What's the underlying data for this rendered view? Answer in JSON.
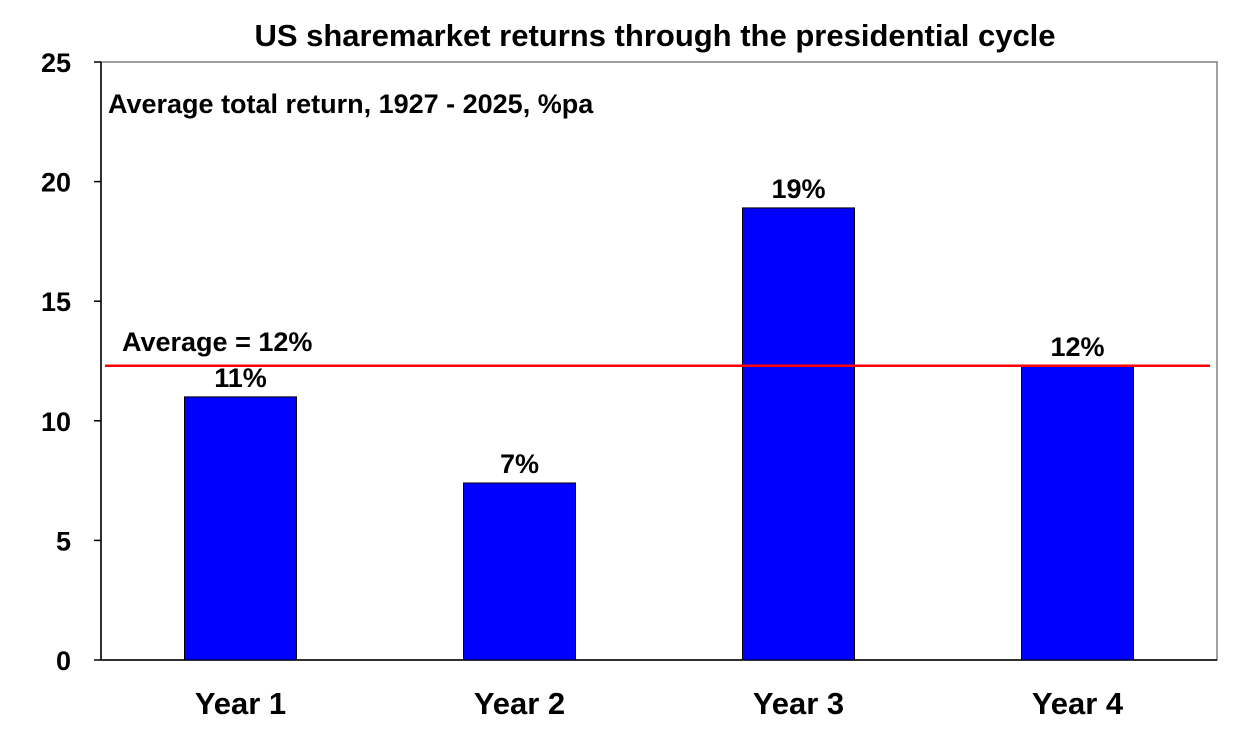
{
  "chart_data": {
    "type": "bar",
    "title": "US sharemarket returns through the presidential cycle",
    "subtitle": "Average total return, 1927 - 2025, %pa",
    "categories": [
      "Year 1",
      "Year 2",
      "Year 3",
      "Year 4"
    ],
    "values": [
      11,
      7.4,
      18.9,
      12.3
    ],
    "data_labels": [
      "11%",
      "7%",
      "19%",
      "12%"
    ],
    "ylim": [
      0,
      25
    ],
    "yticks": [
      0,
      5,
      10,
      15,
      20,
      25
    ],
    "grid": false,
    "bar_color": "#0000ff",
    "reference_line": {
      "label": "Average = 12%",
      "value": 12.3,
      "color": "#ff0000"
    }
  }
}
